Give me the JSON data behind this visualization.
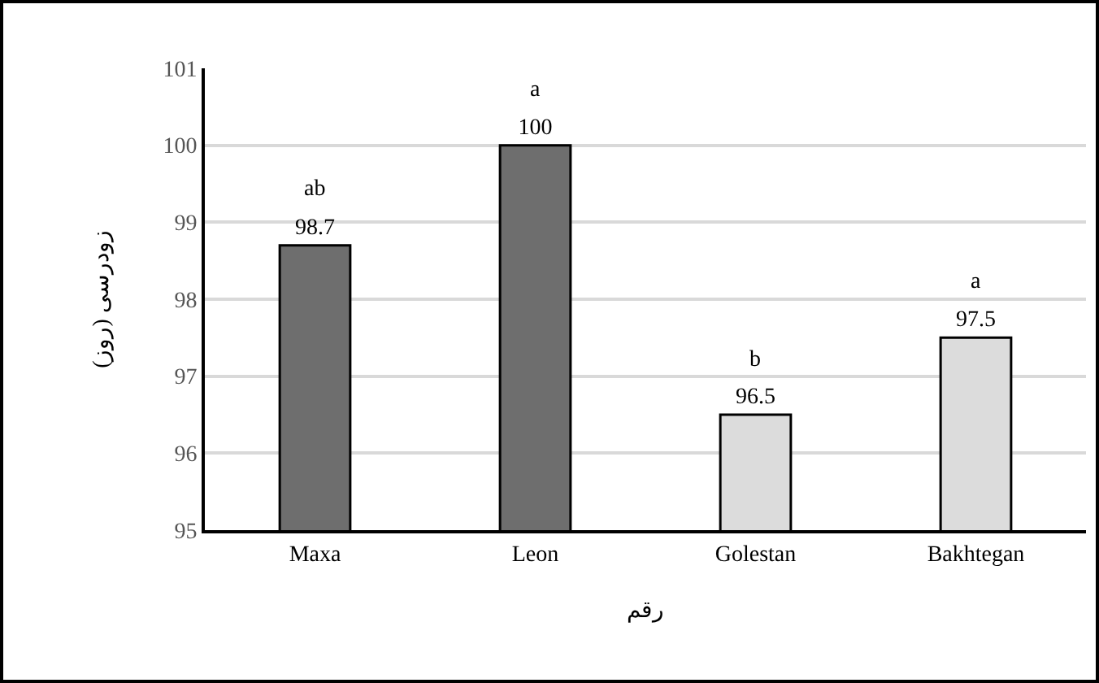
{
  "chart_data": {
    "type": "bar",
    "xlabel": "رقم",
    "ylabel": "زودرسی (روز)",
    "categories": [
      "Maxa",
      "Leon",
      "Golestan",
      "Bakhtegan"
    ],
    "values": [
      98.7,
      100,
      96.5,
      97.5
    ],
    "colors": [
      "#6e6e6e",
      "#6e6e6e",
      "#dcdcdc",
      "#dcdcdc"
    ],
    "value_labels": [
      "98.7",
      "100",
      "96.5",
      "97.5"
    ],
    "annotations": [
      {
        "text": "ab",
        "x": "Maxa",
        "y": 98.7
      },
      {
        "text": "a",
        "x": "Leon",
        "y": 100
      },
      {
        "text": "b",
        "x": "Golestan",
        "y": 96.5
      },
      {
        "text": "a",
        "x": "Bakhtegan",
        "y": 97.5
      }
    ],
    "ylim": [
      95,
      101
    ],
    "yticks": [
      95,
      96,
      97,
      98,
      99,
      100,
      101
    ],
    "grid": "y"
  }
}
